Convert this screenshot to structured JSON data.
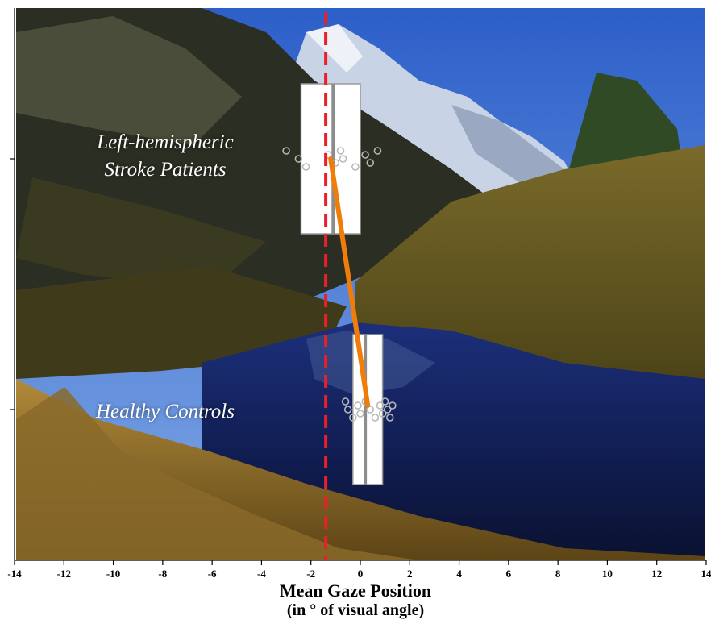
{
  "chart_data": {
    "type": "box",
    "orientation": "horizontal",
    "title": "",
    "xlabel": "Mean Gaze Position",
    "xlabel_sub": "(in ° of visual angle)",
    "xlim": [
      -14,
      14
    ],
    "x_ticks": [
      -14,
      -12,
      -10,
      -8,
      -6,
      -4,
      -2,
      0,
      2,
      4,
      6,
      8,
      10,
      12,
      14
    ],
    "reference_line": {
      "x": -1.4,
      "style": "dashed",
      "color": "#e8202a"
    },
    "categories": [
      {
        "lines": [
          "Left-hemispheric",
          "Stroke Patients"
        ],
        "box": {
          "q1": -2.4,
          "median": -1.1,
          "q3": 0.0
        },
        "mean": -1.2,
        "points": [
          -3.0,
          -2.5,
          -2.2,
          -1.3,
          -1.0,
          -0.8,
          -0.7,
          -0.2,
          0.2,
          0.4,
          0.7
        ]
      },
      {
        "lines": [
          "Healthy Controls"
        ],
        "box": {
          "q1": -0.3,
          "median": 0.2,
          "q3": 0.9
        },
        "mean": 0.3,
        "points": [
          -0.6,
          -0.5,
          -0.3,
          -0.1,
          0.0,
          0.2,
          0.4,
          0.6,
          0.8,
          0.9,
          1.0,
          1.1,
          1.2,
          1.3
        ]
      }
    ],
    "mean_connector_color": "#f07d0a",
    "background": "mountain lake photograph"
  }
}
